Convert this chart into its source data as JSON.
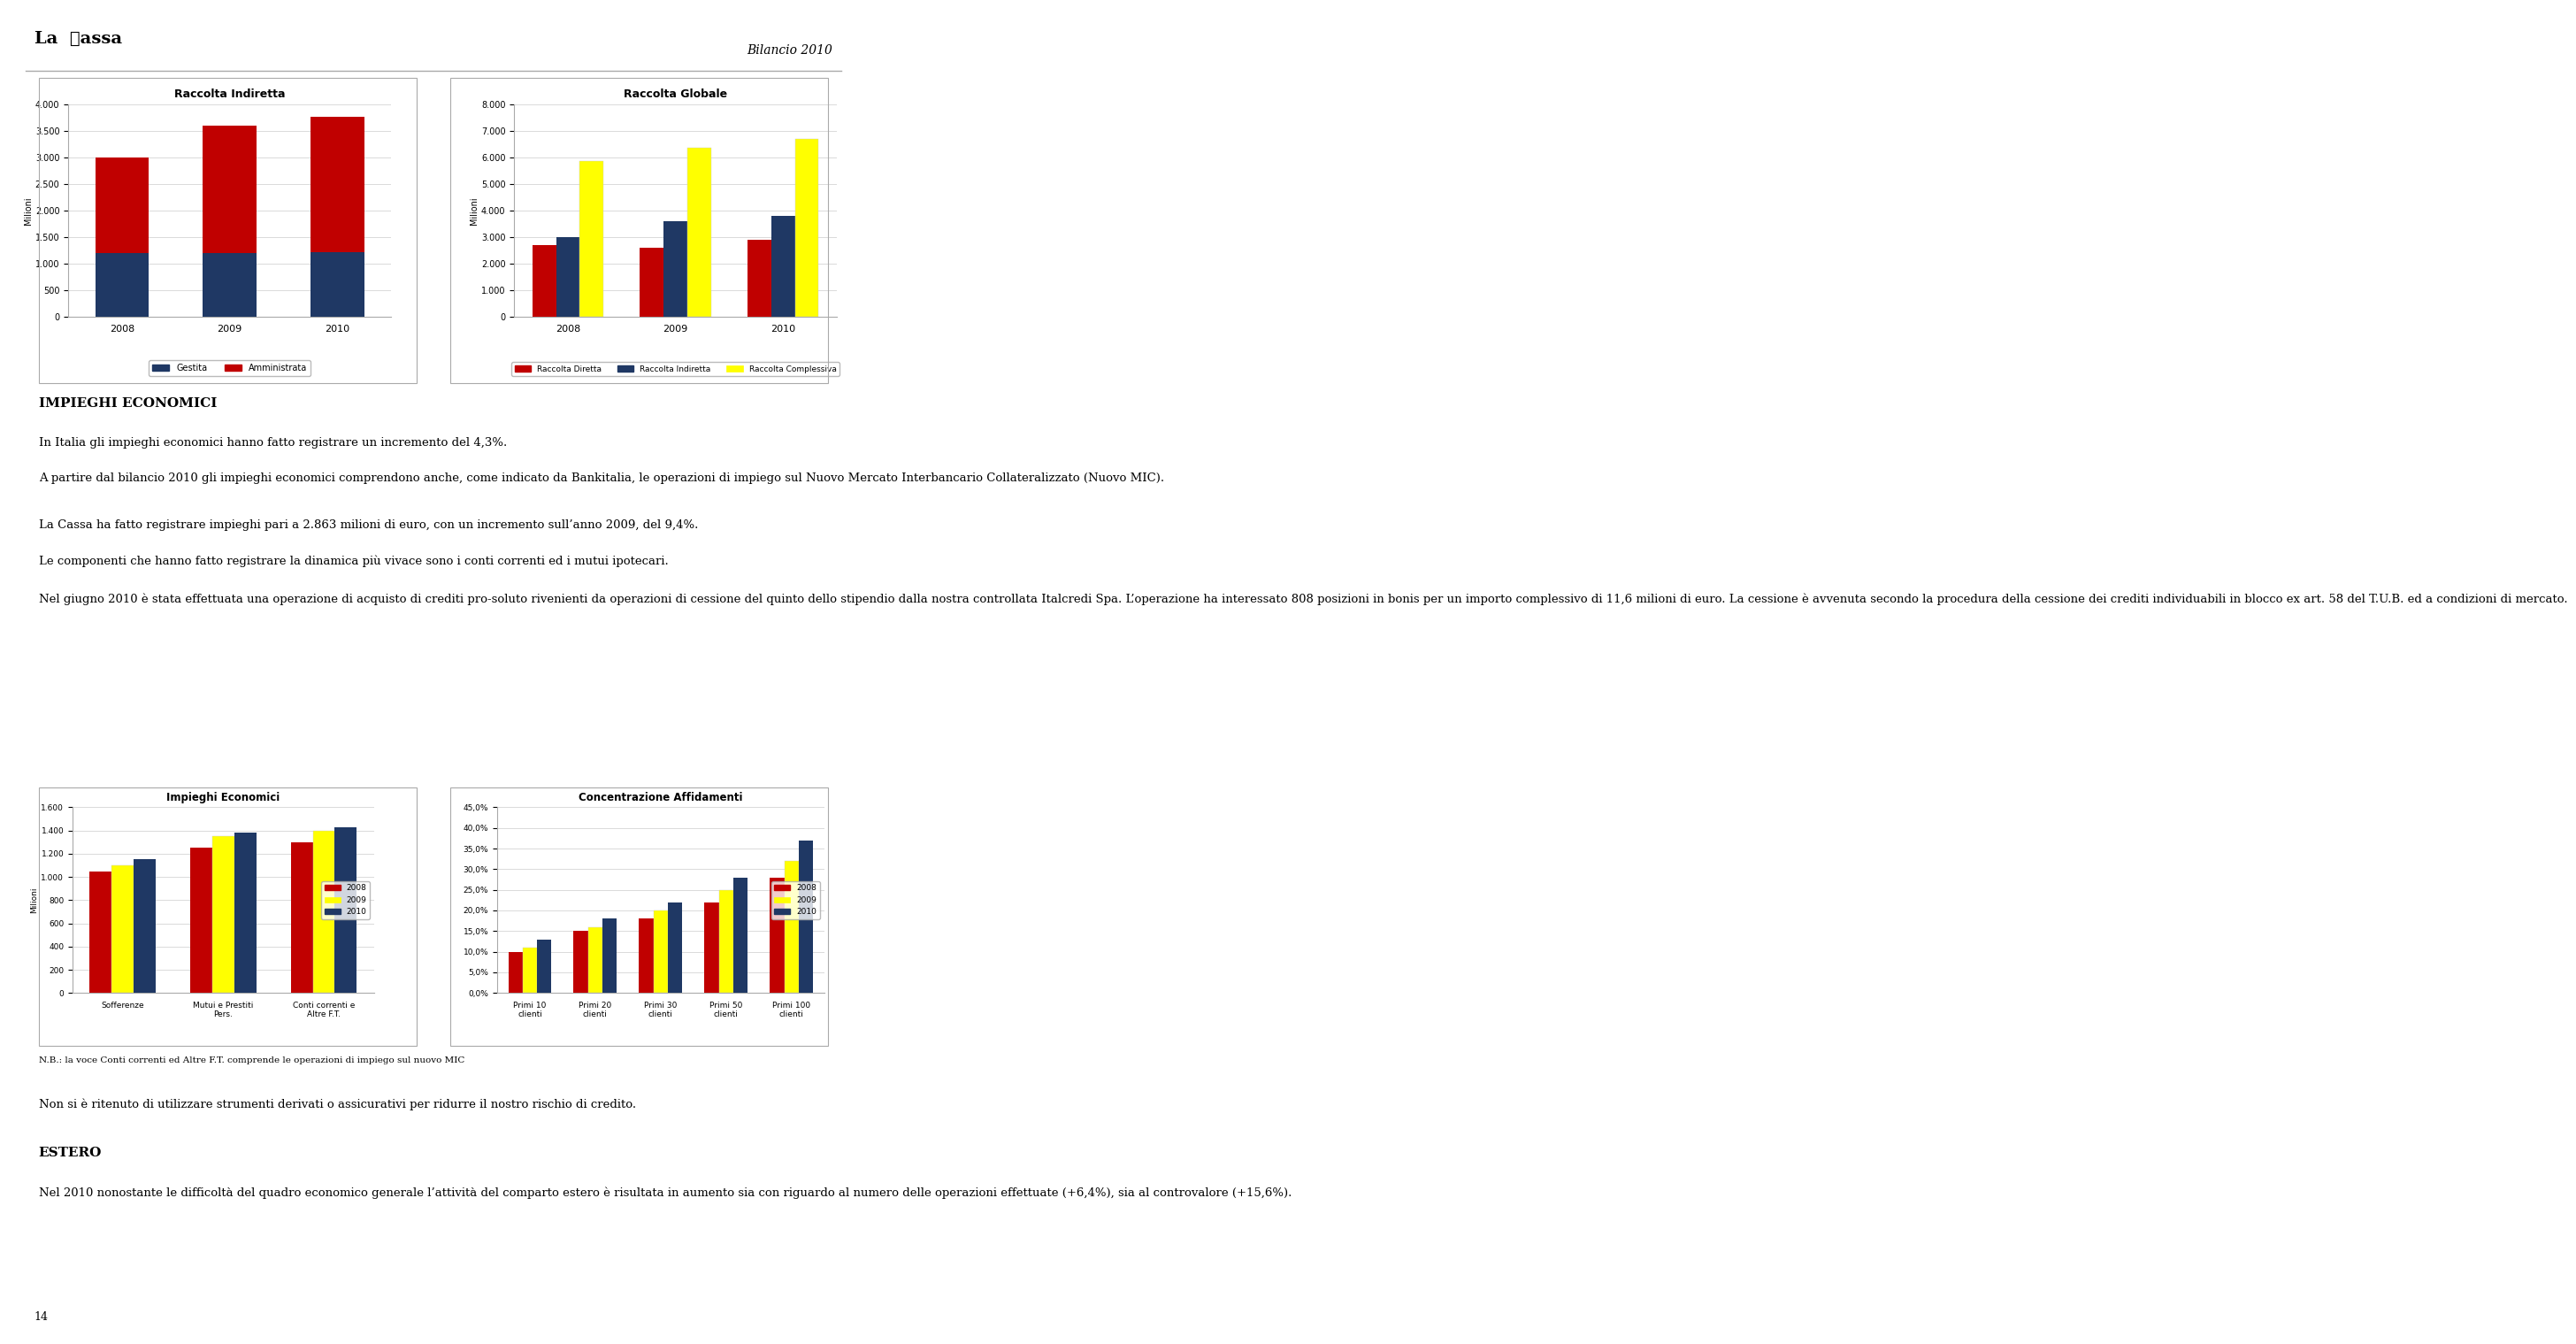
{
  "page_bg": "#ffffff",
  "header_line_color": "#999999",
  "header_title_left": "La  Cassa",
  "header_title_right": "Bilancio 2010",
  "chart1_title": "Raccolta Indiretta",
  "chart1_ylabel": "Milioni",
  "chart1_years": [
    "2008",
    "2009",
    "2010"
  ],
  "chart1_gestita": [
    1200,
    1200,
    1220
  ],
  "chart1_amministrata": [
    1800,
    2400,
    2550
  ],
  "chart1_ylim": [
    0,
    4000
  ],
  "chart1_yticks": [
    0,
    500,
    1000,
    1500,
    2000,
    2500,
    3000,
    3500,
    4000
  ],
  "chart1_color_gestita": "#1F3864",
  "chart1_color_amministrata": "#C00000",
  "chart2_title": "Raccolta Globale",
  "chart2_ylabel": "Milioni",
  "chart2_years": [
    "2008",
    "2009",
    "2010"
  ],
  "chart2_diretta": [
    2700,
    2600,
    2900
  ],
  "chart2_indiretta": [
    3000,
    3600,
    3800
  ],
  "chart2_complessiva": [
    5850,
    6350,
    6700
  ],
  "chart2_ylim": [
    0,
    8000
  ],
  "chart2_yticks": [
    0,
    1000,
    2000,
    3000,
    4000,
    5000,
    6000,
    7000,
    8000
  ],
  "chart2_color_diretta": "#C00000",
  "chart2_color_indiretta": "#1F3864",
  "chart2_color_complessiva": "#FFFF00",
  "section_title": "IMPIEGHI ECONOMICI",
  "para1": "In Italia gli impieghi economici hanno fatto registrare un incremento del 4,3%.",
  "para2": "A partire dal bilancio 2010 gli impieghi economici comprendono anche, come indicato da Bankitalia, le operazioni di impiego sul Nuovo Mercato Interbancario Collateralizzato (Nuovo MIC).",
  "para3": "La Cassa ha fatto registrare impieghi pari a 2.863 milioni di euro, con un incremento sull’anno 2009, del 9,4%.",
  "para4": "Le componenti che hanno fatto registrare la dinamica più vivace sono i conti correnti ed i mutui ipotecari.",
  "para5": "Nel giugno 2010 è stata effettuata una operazione di acquisto di crediti pro-soluto rivenienti da operazioni di cessione del quinto dello stipendio dalla nostra controllata Italcredi Spa. L’operazione ha interessato 808 posizioni in bonis per un importo complessivo di 11,6 milioni di euro. La cessione è avvenuta secondo la procedura della cessione dei crediti individuabili in blocco ex art. 58 del T.U.B. ed a condizioni di mercato.",
  "para6": "Non si è ritenuto di utilizzare strumenti derivati o assicurativi per ridurre il nostro rischio di credito.",
  "chart3_title": "Impieghi Economici",
  "chart3_ylabel": "Milioni",
  "chart3_categories": [
    "Sofferenze",
    "Mutui e Prestiti\nPers.",
    "Conti correnti e\nAltre F.T."
  ],
  "chart3_2008": [
    1050,
    1250,
    1300
  ],
  "chart3_2009": [
    1100,
    1350,
    1400
  ],
  "chart3_2010": [
    1150,
    1380,
    1430
  ],
  "chart3_ylim": [
    0,
    1600
  ],
  "chart3_yticks": [
    0,
    200,
    400,
    600,
    800,
    1000,
    1200,
    1400,
    1600
  ],
  "chart3_color_2008": "#C00000",
  "chart3_color_2009": "#FFFF00",
  "chart3_color_2010": "#1F3864",
  "chart4_title": "Concentrazione Affidamenti",
  "chart4_categories": [
    "Primi 10\nclienti",
    "Primi 20\nclienti",
    "Primi 30\nclienti",
    "Primi 50\nclienti",
    "Primi 100\nclienti"
  ],
  "chart4_2008": [
    0.1,
    0.15,
    0.18,
    0.22,
    0.28
  ],
  "chart4_2009": [
    0.11,
    0.16,
    0.2,
    0.25,
    0.32
  ],
  "chart4_2010": [
    0.13,
    0.18,
    0.22,
    0.28,
    0.37
  ],
  "chart4_ylim": [
    0,
    0.45
  ],
  "chart4_yticks": [
    0,
    0.05,
    0.1,
    0.15,
    0.2,
    0.25,
    0.3,
    0.35,
    0.4,
    0.45
  ],
  "chart4_color_2008": "#C00000",
  "chart4_color_2009": "#FFFF00",
  "chart4_color_2010": "#1F3864",
  "nb_text": "N.B.: la voce Conti correnti ed Altre F.T. comprende le operazioni di impiego sul nuovo MIC",
  "section2_title": "ESTERO",
  "para_estero": "Nel 2010 nonostante le difficoltà del quadro economico generale l’attività del comparto estero è risultata in aumento sia con riguardo al numero delle operazioni effettuate (+6,4%), sia al controvalore (+15,6%).",
  "footer_number": "14"
}
